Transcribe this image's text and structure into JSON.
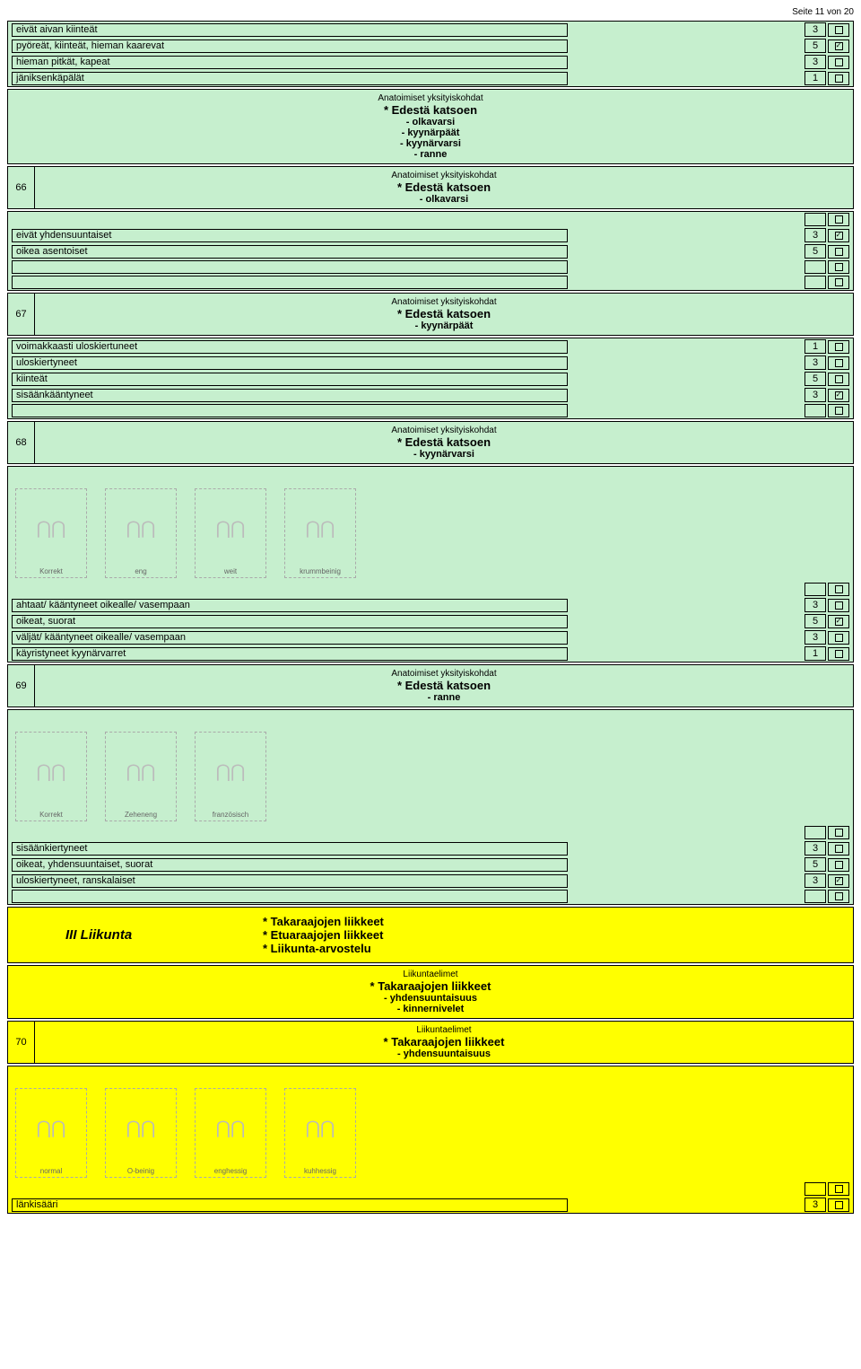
{
  "page_num": "Seite 11 von 20",
  "colors": {
    "green": "#c6efce",
    "yellow": "#ffff00",
    "border": "#000000"
  },
  "top_options": [
    {
      "label": "eivät aivan kiinteät",
      "score": "3",
      "checked": false
    },
    {
      "label": "pyöreät, kiinteät, hieman kaarevat",
      "score": "5",
      "checked": true
    },
    {
      "label": "hieman pitkät, kapeat",
      "score": "3",
      "checked": false
    },
    {
      "label": "jäniksenkäpälät",
      "score": "1",
      "checked": false
    }
  ],
  "section_a": {
    "pretitle": "Anatoimiset yksityiskohdat",
    "title": "* Edestä katsoen",
    "subs": [
      "- olkavarsi",
      "- kyynärpäät",
      "- kyynärvarsi",
      "- ranne"
    ]
  },
  "section_66": {
    "num": "66",
    "pretitle": "Anatoimiset yksityiskohdat",
    "title": "* Edestä katsoen",
    "sub": "- olkavarsi",
    "empty_before": 1,
    "options": [
      {
        "label": "eivät yhdensuuntaiset",
        "score": "3",
        "checked": true
      },
      {
        "label": "oikea asentoiset",
        "score": "5",
        "checked": false
      }
    ],
    "empty_after": 2
  },
  "section_67": {
    "num": "67",
    "pretitle": "Anatoimiset yksityiskohdat",
    "title": "* Edestä katsoen",
    "sub": "- kyynärpäät",
    "options": [
      {
        "label": "voimakkaasti uloskiertuneet",
        "score": "1",
        "checked": false
      },
      {
        "label": "uloskiertyneet",
        "score": "3",
        "checked": false
      },
      {
        "label": "kiinteät",
        "score": "5",
        "checked": false
      },
      {
        "label": "sisäänkääntyneet",
        "score": "3",
        "checked": true
      }
    ],
    "empty_after": 1
  },
  "section_68": {
    "num": "68",
    "pretitle": "Anatoimiset yksityiskohdat",
    "title": "* Edestä katsoen",
    "sub": "- kyynärvarsi",
    "images": [
      "Korrekt",
      "eng",
      "weit",
      "krummbeinig"
    ],
    "empty_before": 1,
    "options": [
      {
        "label": "ahtaat/ kääntyneet oikealle/ vasempaan",
        "score": "3",
        "checked": false
      },
      {
        "label": "oikeat, suorat",
        "score": "5",
        "checked": true
      },
      {
        "label": "väljät/ kääntyneet oikealle/ vasempaan",
        "score": "3",
        "checked": false
      },
      {
        "label": "käyristyneet kyynärvarret",
        "score": "1",
        "checked": false
      }
    ]
  },
  "section_69": {
    "num": "69",
    "pretitle": "Anatoimiset yksityiskohdat",
    "title": "* Edestä katsoen",
    "sub": "- ranne",
    "images": [
      "Korrekt",
      "Zeheneng",
      "französisch"
    ],
    "empty_before": 1,
    "options": [
      {
        "label": "sisäänkiertyneet",
        "score": "3",
        "checked": false
      },
      {
        "label": "oikeat, yhdensuuntaiset, suorat",
        "score": "5",
        "checked": false
      },
      {
        "label": "uloskiertyneet, ranskalaiset",
        "score": "3",
        "checked": true
      }
    ],
    "empty_after": 1
  },
  "liikunta": {
    "title": "III Liikunta",
    "items": [
      "* Takaraajojen liikkeet",
      "* Etuaraajojen liikkeet",
      "* Liikunta-arvostelu"
    ]
  },
  "liikunta_detail": {
    "pretitle": "Liikuntaelimet",
    "title": "* Takaraajojen liikkeet",
    "subs": [
      "- yhdensuuntaisuus",
      "- kinnernivelet"
    ]
  },
  "section_70": {
    "num": "70",
    "pretitle": "Liikuntaelimet",
    "title": "* Takaraajojen liikkeet",
    "sub": "- yhdensuuntaisuus",
    "images": [
      "normal",
      "O-beinig",
      "enghessig",
      "kuhhessig"
    ],
    "empty_before": 1,
    "options": [
      {
        "label": "länkisääri",
        "score": "3",
        "checked": false
      }
    ]
  }
}
